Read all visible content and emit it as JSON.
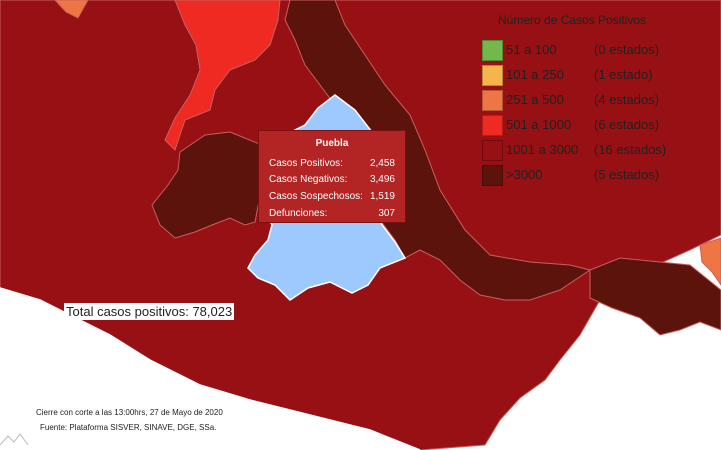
{
  "legend": {
    "title": "Número de Casos Positivos",
    "items": [
      {
        "range": "51 a 100",
        "count": "(0 estados)",
        "color": "#72b84a"
      },
      {
        "range": "101 a 250",
        "count": "(1 estado)",
        "color": "#f5b54a"
      },
      {
        "range": "251 a 500",
        "count": "(4 estados)",
        "color": "#ee7644"
      },
      {
        "range": "501 a 1000",
        "count": "(6 estados)",
        "color": "#ee2a22"
      },
      {
        "range": "1001 a 3000",
        "count": "(16 estados)",
        "color": "#971013"
      },
      {
        "range": ">3000",
        "count": "(5 estados)",
        "color": "#5c130b"
      }
    ]
  },
  "tooltip": {
    "state": "Puebla",
    "rows": [
      {
        "label": "Casos Positivos:",
        "value": "2,458"
      },
      {
        "label": "Casos Negativos:",
        "value": "3,496"
      },
      {
        "label": "Casos Sospechosos:",
        "value": "1,519"
      },
      {
        "label": "Defunciones:",
        "value": "307"
      }
    ]
  },
  "total": "Total casos positivos: 78,023",
  "footer": {
    "line1": "Cierre con corte a las 13:00hrs, 27 de Mayo de 2020",
    "line2": "Fuente: Plataforma SISVER, SINAVE, DGE, SSa."
  },
  "colors": {
    "dark_red": "#971013",
    "darkest": "#5c130b",
    "red": "#ee2a22",
    "orange": "#ee7644",
    "highlight": "#9ec9ff",
    "border": "#d07070"
  }
}
